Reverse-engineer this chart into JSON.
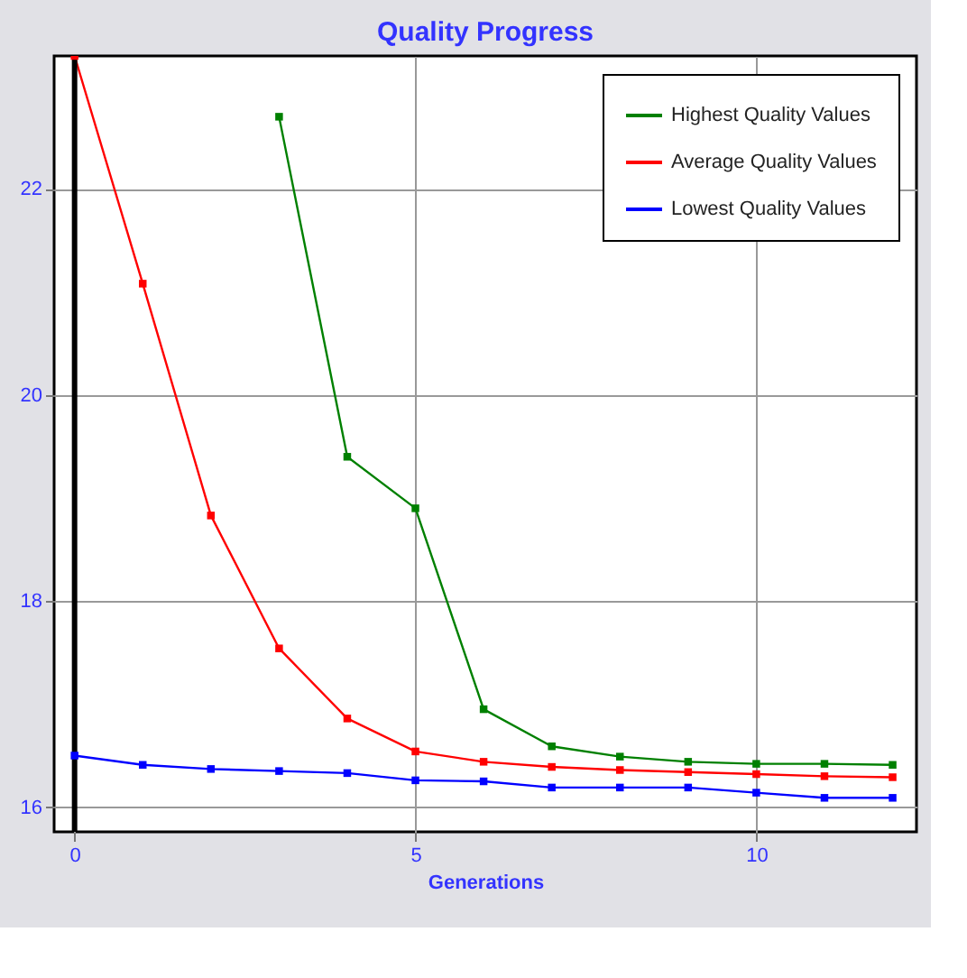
{
  "chart_data": {
    "type": "line",
    "title": "Quality Progress",
    "xlabel": "Generations",
    "x": [
      0,
      1,
      2,
      3,
      4,
      5,
      6,
      7,
      8,
      9,
      10,
      11,
      12
    ],
    "series": [
      {
        "name": "Highest Quality Values",
        "color": "#008000",
        "values": [
          null,
          null,
          null,
          22.7,
          19.4,
          18.9,
          16.95,
          16.59,
          16.49,
          16.44,
          16.42,
          16.42,
          16.41
        ]
      },
      {
        "name": "Average Quality Values",
        "color": "#ff0000",
        "values": [
          23.29,
          21.08,
          18.83,
          17.54,
          16.86,
          16.54,
          16.44,
          16.39,
          16.36,
          16.34,
          16.32,
          16.3,
          16.29
        ]
      },
      {
        "name": "Lowest Quality Values",
        "color": "#0000ff",
        "values": [
          16.5,
          16.41,
          16.37,
          16.35,
          16.33,
          16.26,
          16.25,
          16.19,
          16.19,
          16.19,
          16.14,
          16.09,
          16.09
        ]
      }
    ],
    "xlim": [
      -0.3,
      12.35
    ],
    "ylim": [
      15.76,
      23.29
    ],
    "xticks": [
      0,
      5,
      10
    ],
    "yticks": [
      16,
      18,
      20,
      22
    ],
    "ref_lines": [
      {
        "axis": "x",
        "value": 0,
        "color": "#000000"
      }
    ],
    "grid": true,
    "legend": "top right",
    "marker": "square",
    "line_style": "solid"
  }
}
